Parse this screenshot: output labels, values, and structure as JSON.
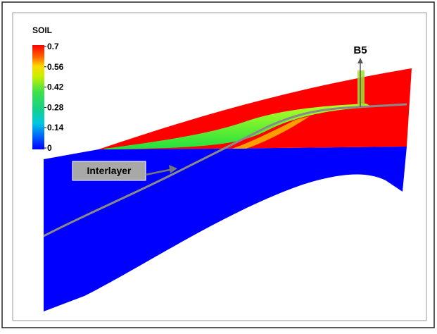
{
  "colorbar": {
    "title": "SOIL",
    "ticks": [
      0.7,
      0.56,
      0.42,
      0.28,
      0.14,
      0
    ]
  },
  "labels": {
    "well": "B5",
    "interlayer": "Interlayer"
  }
}
